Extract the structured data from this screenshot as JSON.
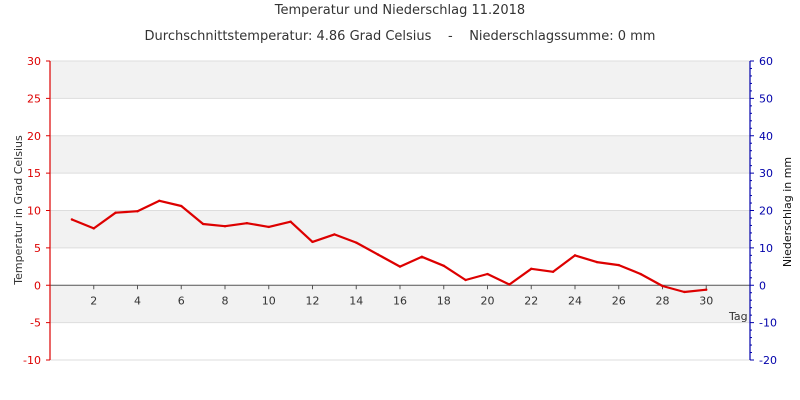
{
  "chart_data": {
    "type": "line",
    "title": "Temperatur und Niederschlag 11.2018",
    "subtitle_parts": [
      "Durchschnittstemperatur: 4.86 Grad Celsius",
      "-",
      "Niederschlagssumme: 0 mm"
    ],
    "xlabel": "Tag",
    "ylabel": "Temperatur in Grad Celsius",
    "y2label": "Niederschlag in mm",
    "xlim": [
      0,
      32
    ],
    "ylim": [
      -10,
      30
    ],
    "y2lim": [
      -20,
      60
    ],
    "x_ticks": [
      2,
      4,
      6,
      8,
      10,
      12,
      14,
      16,
      18,
      20,
      22,
      24,
      26,
      28,
      30
    ],
    "y_ticks": [
      -10,
      -5,
      0,
      5,
      10,
      15,
      20,
      25,
      30
    ],
    "y2_ticks": [
      -20,
      -10,
      0,
      10,
      20,
      30,
      40,
      50,
      60
    ],
    "grid": true,
    "series": [
      {
        "name": "",
        "color": "#dd0000",
        "x": [
          1,
          2,
          3,
          4,
          5,
          6,
          7,
          8,
          9,
          10,
          11,
          12,
          13,
          14,
          15,
          16,
          17,
          18,
          19,
          20,
          21,
          22,
          23,
          24,
          25,
          26,
          27,
          28,
          29,
          30
        ],
        "values": [
          8.8,
          7.6,
          9.7,
          9.9,
          11.3,
          10.6,
          8.2,
          7.9,
          8.3,
          7.8,
          8.5,
          5.8,
          6.8,
          5.7,
          4.1,
          2.5,
          3.8,
          2.6,
          0.7,
          1.5,
          0.1,
          2.2,
          1.8,
          4.0,
          3.1,
          2.7,
          1.5,
          -0.1,
          -0.9,
          -0.6
        ]
      }
    ],
    "colors": {
      "left_axis": "#dd0000",
      "right_axis": "#0000aa",
      "band": "#f2f2f2",
      "grid": "#dddddd",
      "text": "#333333"
    }
  }
}
